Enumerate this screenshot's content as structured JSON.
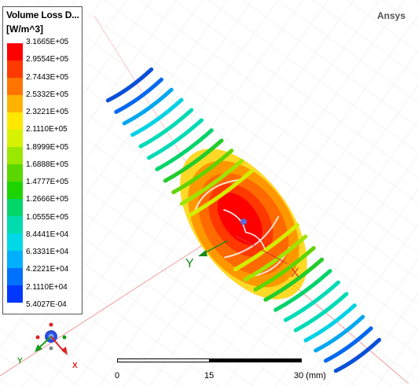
{
  "brand": "Ansys",
  "legend": {
    "title": "Volume Loss D...",
    "unit": "[W/m^3]",
    "labels": [
      "3.1665E+05",
      "2.9554E+05",
      "2.7443E+05",
      "2.5332E+05",
      "2.3221E+05",
      "2.1110E+05",
      "1.8999E+05",
      "1.6888E+05",
      "1.4777E+05",
      "1.2666E+05",
      "1.0555E+05",
      "8.4441E+04",
      "6.3331E+04",
      "4.2221E+04",
      "2.1110E+04",
      "5.4027E-04"
    ],
    "colors": [
      "#ff0000",
      "#ff3a00",
      "#ff7400",
      "#ffb300",
      "#ffe800",
      "#d6f200",
      "#9ae800",
      "#5ad700",
      "#1ed400",
      "#00d66a",
      "#00dcae",
      "#00d8e6",
      "#00b0ff",
      "#0070ff",
      "#0038ff",
      "#0000ff"
    ]
  },
  "axes": {
    "x_label": "X",
    "y_label": "Y"
  },
  "triad": {
    "x_label": "X",
    "y_label": "Y"
  },
  "scale_bar": {
    "ticks": [
      "0",
      "15",
      "30 (mm)"
    ]
  }
}
